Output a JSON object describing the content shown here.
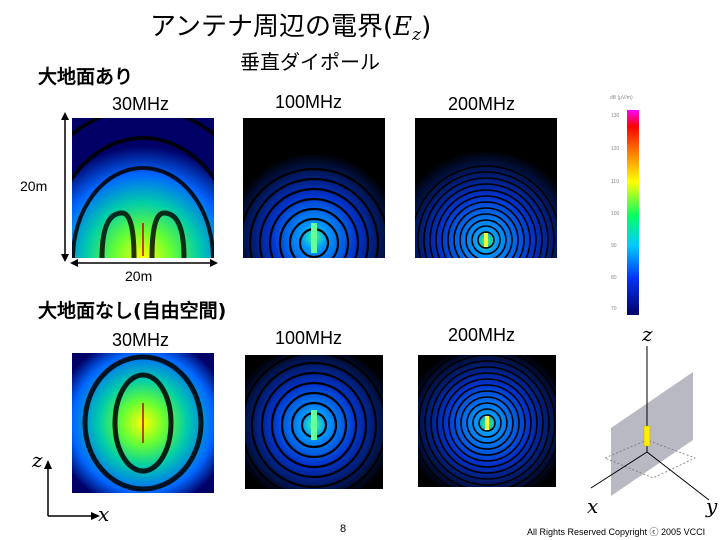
{
  "title": {
    "main": "アンテナ周辺の電界",
    "open": "(",
    "var": "E",
    "sub": "z",
    "close": ")"
  },
  "subtitle": "垂直ダイポール",
  "sections": {
    "ground": "大地面あり",
    "free": "大地面なし(自由空間)"
  },
  "frequencies": {
    "f30": "30MHz",
    "f100": "100MHz",
    "f200": "200MHz"
  },
  "dimensions": {
    "vertical": "20m",
    "horizontal": "20m"
  },
  "axes": {
    "z": "z",
    "x": "x",
    "y": "y"
  },
  "colorbar": {
    "unit": "dB (μV/m)",
    "ticks": [
      "130",
      "120",
      "110",
      "100",
      "90",
      "80",
      "70"
    ]
  },
  "footer": {
    "page": "8",
    "copyright": "All Rights Reserved Copyright ⓒ 2005 VCCI"
  },
  "colors": {
    "field_peak": "#ffff00",
    "field_mid": "#00ff66",
    "field_low": "#0033ff",
    "background": "#000000"
  }
}
